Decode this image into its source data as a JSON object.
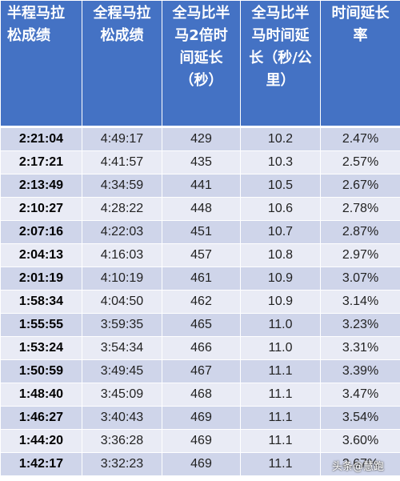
{
  "headers": [
    "半程马拉松成绩",
    "全程马拉松成绩",
    "全马比半马2倍时间延长（秒）",
    "全马比半马时间延长（秒/公里）",
    "时间延长率"
  ],
  "rows": [
    [
      "2:21:04",
      "4:49:17",
      "429",
      "10.2",
      "2.47%"
    ],
    [
      "2:17:21",
      "4:41:57",
      "435",
      "10.3",
      "2.57%"
    ],
    [
      "2:13:49",
      "4:34:59",
      "441",
      "10.5",
      "2.67%"
    ],
    [
      "2:10:27",
      "4:28:22",
      "448",
      "10.6",
      "2.78%"
    ],
    [
      "2:07:16",
      "4:22:03",
      "451",
      "10.7",
      "2.87%"
    ],
    [
      "2:04:13",
      "4:16:03",
      "457",
      "10.8",
      "2.97%"
    ],
    [
      "2:01:19",
      "4:10:19",
      "461",
      "10.9",
      "3.07%"
    ],
    [
      "1:58:34",
      "4:04:50",
      "462",
      "10.9",
      "3.14%"
    ],
    [
      "1:55:55",
      "3:59:35",
      "465",
      "11.0",
      "3.23%"
    ],
    [
      "1:53:24",
      "3:54:34",
      "466",
      "11.0",
      "3.31%"
    ],
    [
      "1:50:59",
      "3:49:45",
      "467",
      "11.1",
      "3.39%"
    ],
    [
      "1:48:40",
      "3:45:09",
      "468",
      "11.1",
      "3.47%"
    ],
    [
      "1:46:27",
      "3:40:43",
      "469",
      "11.1",
      "3.54%"
    ],
    [
      "1:44:20",
      "3:36:28",
      "469",
      "11.1",
      "3.60%"
    ],
    [
      "1:42:17",
      "3:32:23",
      "469",
      "11.1",
      "3.67%"
    ]
  ],
  "watermark": "头条@慧跑"
}
